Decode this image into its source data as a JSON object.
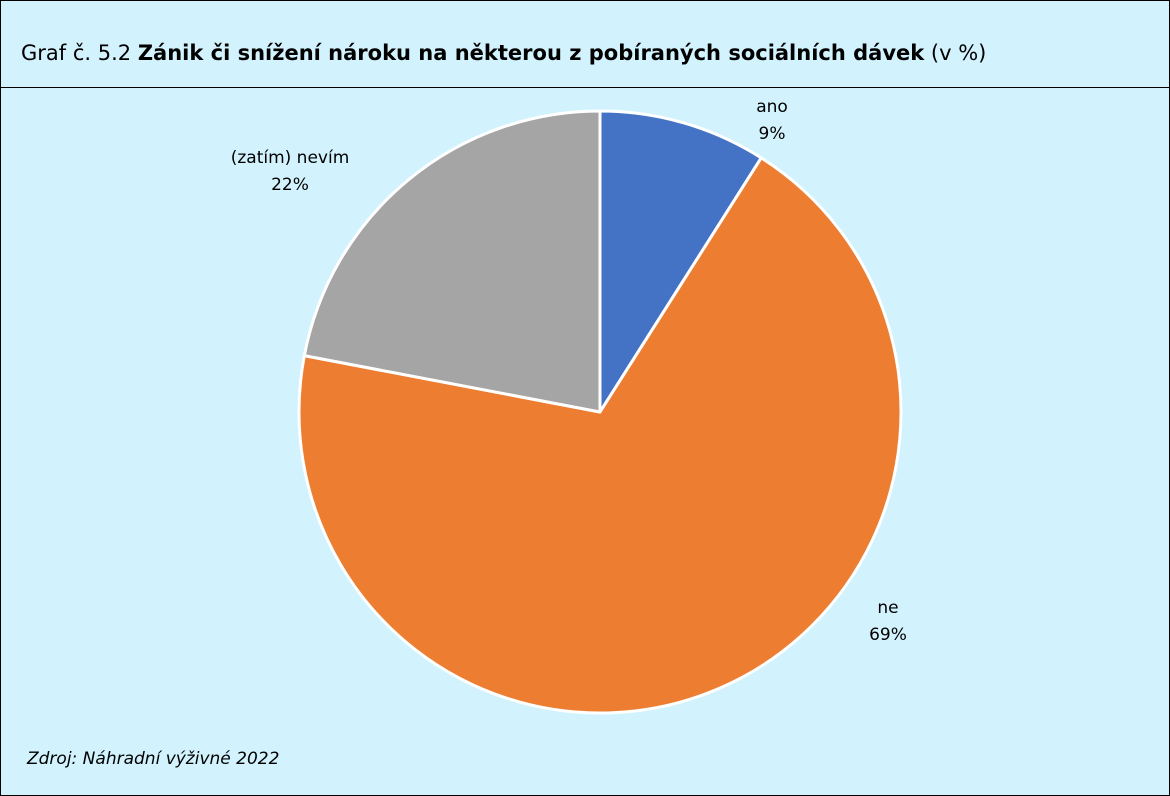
{
  "title": {
    "prefix": "Graf č. 5.2 ",
    "bold": "Zánik či snížení nároku na některou z pobíraných sociálních dávek",
    "suffix": " (v %)"
  },
  "source": "Zdroj: Náhradní výživné 2022",
  "colors": {
    "background": "#d2f2fd",
    "slice_border": "#ffffff"
  },
  "chart_data": {
    "type": "pie",
    "start_angle_deg": 0,
    "direction": "clockwise",
    "slices": [
      {
        "label": "ano",
        "value": 9,
        "value_label": "9%",
        "color": "#4472c4"
      },
      {
        "label": "ne",
        "value": 69,
        "value_label": "69%",
        "color": "#ed7d31"
      },
      {
        "label": "(zatím) nevím",
        "value": 22,
        "value_label": "22%",
        "color": "#a5a5a5"
      }
    ]
  }
}
